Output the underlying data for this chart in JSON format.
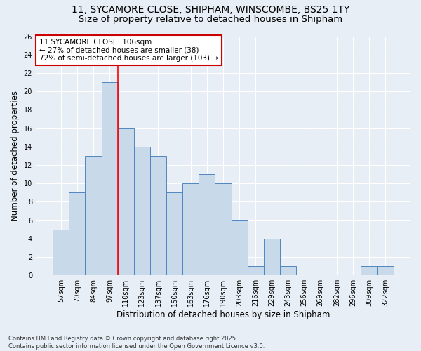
{
  "title": "11, SYCAMORE CLOSE, SHIPHAM, WINSCOMBE, BS25 1TY",
  "subtitle": "Size of property relative to detached houses in Shipham",
  "xlabel": "Distribution of detached houses by size in Shipham",
  "ylabel": "Number of detached properties",
  "categories": [
    "57sqm",
    "70sqm",
    "84sqm",
    "97sqm",
    "110sqm",
    "123sqm",
    "137sqm",
    "150sqm",
    "163sqm",
    "176sqm",
    "190sqm",
    "203sqm",
    "216sqm",
    "229sqm",
    "243sqm",
    "256sqm",
    "269sqm",
    "282sqm",
    "296sqm",
    "309sqm",
    "322sqm"
  ],
  "values": [
    5,
    9,
    13,
    21,
    16,
    14,
    13,
    9,
    10,
    11,
    10,
    6,
    1,
    4,
    1,
    0,
    0,
    0,
    0,
    1,
    1
  ],
  "bar_color": "#c8d9ea",
  "bar_edge_color": "#4f86c0",
  "red_line_x": 3.5,
  "annotation_text": "11 SYCAMORE CLOSE: 106sqm\n← 27% of detached houses are smaller (38)\n72% of semi-detached houses are larger (103) →",
  "annotation_box_color": "#ffffff",
  "annotation_box_edge": "#cc0000",
  "ylim": [
    0,
    26
  ],
  "yticks": [
    0,
    2,
    4,
    6,
    8,
    10,
    12,
    14,
    16,
    18,
    20,
    22,
    24,
    26
  ],
  "background_color": "#e8eef6",
  "grid_color": "#ffffff",
  "footer": "Contains HM Land Registry data © Crown copyright and database right 2025.\nContains public sector information licensed under the Open Government Licence v3.0.",
  "title_fontsize": 10,
  "subtitle_fontsize": 9.5,
  "xlabel_fontsize": 8.5,
  "ylabel_fontsize": 8.5,
  "tick_fontsize": 7,
  "annotation_fontsize": 7.5,
  "footer_fontsize": 6
}
